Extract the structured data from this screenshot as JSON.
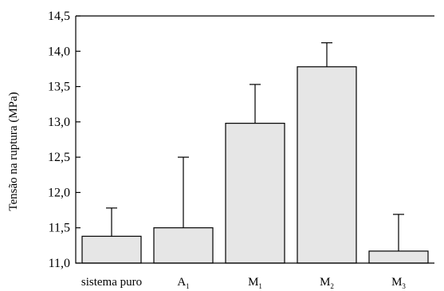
{
  "chart_data": {
    "type": "bar",
    "title": "",
    "xlabel": "",
    "ylabel": "Tensão na ruptura (MPa)",
    "ylim": [
      11.0,
      14.5
    ],
    "yticks": [
      "11,0",
      "11,5",
      "12,0",
      "12,5",
      "13,0",
      "13,5",
      "14,0",
      "14,5"
    ],
    "categories": [
      {
        "main": "sistema puro",
        "sub": ""
      },
      {
        "main": "A",
        "sub": "1"
      },
      {
        "main": "M",
        "sub": "1"
      },
      {
        "main": "M",
        "sub": "2"
      },
      {
        "main": "M",
        "sub": "3"
      }
    ],
    "values": [
      11.38,
      11.5,
      12.98,
      13.78,
      11.17
    ],
    "error_upper": [
      11.78,
      12.5,
      13.53,
      14.12,
      11.69
    ],
    "grid": false,
    "legend": "none",
    "colors": {
      "bar_fill": "#e6e6e6",
      "bar_stroke": "#000000"
    }
  }
}
